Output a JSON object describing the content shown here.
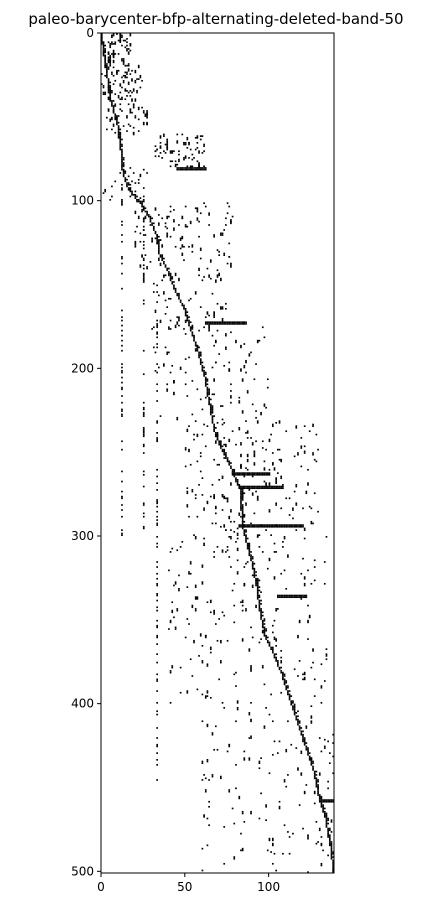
{
  "chart_data": {
    "type": "heatmap",
    "subtype": "sparsity-pattern",
    "title": "paleo-barycenter-bfp-alternating-deleted-band-50",
    "xlabel": "",
    "ylabel": "",
    "xlim": [
      0,
      139
    ],
    "ylim": [
      501,
      0
    ],
    "y_axis_inverted": true,
    "xticks": [
      0,
      50,
      100
    ],
    "yticks": [
      0,
      100,
      200,
      300,
      400,
      500
    ],
    "grid": false,
    "colors": {
      "nonzero": "#000000",
      "zero": "#ffffff"
    },
    "main_diagonal_path": [
      [
        0,
        0
      ],
      [
        3,
        20
      ],
      [
        6,
        40
      ],
      [
        10,
        55
      ],
      [
        12,
        70
      ],
      [
        13,
        82
      ],
      [
        16,
        92
      ],
      [
        24,
        102
      ],
      [
        29,
        110
      ],
      [
        33,
        120
      ],
      [
        35,
        132
      ],
      [
        40,
        142
      ],
      [
        45,
        155
      ],
      [
        50,
        165
      ],
      [
        54,
        178
      ],
      [
        58,
        190
      ],
      [
        62,
        205
      ],
      [
        65,
        222
      ],
      [
        68,
        238
      ],
      [
        73,
        250
      ],
      [
        78,
        260
      ],
      [
        83,
        272
      ],
      [
        84,
        285
      ],
      [
        84,
        292
      ],
      [
        86,
        300
      ],
      [
        90,
        315
      ],
      [
        93,
        330
      ],
      [
        95,
        345
      ],
      [
        98,
        360
      ],
      [
        103,
        370
      ],
      [
        108,
        382
      ],
      [
        112,
        395
      ],
      [
        117,
        410
      ],
      [
        122,
        425
      ],
      [
        127,
        440
      ],
      [
        130,
        455
      ],
      [
        134,
        468
      ],
      [
        137,
        485
      ],
      [
        139,
        501
      ]
    ],
    "dense_blocks": [
      {
        "rows": [
          0,
          18
        ],
        "cols": [
          0,
          18
        ],
        "density": 0.55
      },
      {
        "rows": [
          18,
          40
        ],
        "cols": [
          0,
          25
        ],
        "density": 0.35
      },
      {
        "rows": [
          40,
          60
        ],
        "cols": [
          3,
          28
        ],
        "density": 0.28
      },
      {
        "rows": [
          60,
          80
        ],
        "cols": [
          32,
          62
        ],
        "density": 0.35
      },
      {
        "rows": [
          80,
          100
        ],
        "cols": [
          0,
          30
        ],
        "density": 0.12
      },
      {
        "rows": [
          100,
          140
        ],
        "cols": [
          20,
          80
        ],
        "density": 0.12
      },
      {
        "rows": [
          140,
          175
        ],
        "cols": [
          30,
          75
        ],
        "density": 0.1
      },
      {
        "rows": [
          175,
          230
        ],
        "cols": [
          30,
          100
        ],
        "density": 0.07
      },
      {
        "rows": [
          230,
          300
        ],
        "cols": [
          50,
          130
        ],
        "density": 0.1
      },
      {
        "rows": [
          300,
          400
        ],
        "cols": [
          40,
          135
        ],
        "density": 0.06
      },
      {
        "rows": [
          400,
          501
        ],
        "cols": [
          60,
          139
        ],
        "density": 0.05
      }
    ],
    "horizontal_segments": [
      {
        "row": 172,
        "cols": [
          62,
          86
        ]
      },
      {
        "row": 80,
        "cols": [
          45,
          62
        ]
      },
      {
        "row": 262,
        "cols": [
          78,
          100
        ]
      },
      {
        "row": 270,
        "cols": [
          82,
          108
        ]
      },
      {
        "row": 293,
        "cols": [
          82,
          120
        ]
      },
      {
        "row": 335,
        "cols": [
          105,
          122
        ]
      },
      {
        "row": 457,
        "cols": [
          132,
          139
        ]
      }
    ],
    "sparse_columns": [
      {
        "col": 12,
        "rows": [
          90,
          300
        ]
      },
      {
        "col": 25,
        "rows": [
          90,
          300
        ]
      },
      {
        "col": 33,
        "rows": [
          150,
          450
        ]
      }
    ]
  }
}
